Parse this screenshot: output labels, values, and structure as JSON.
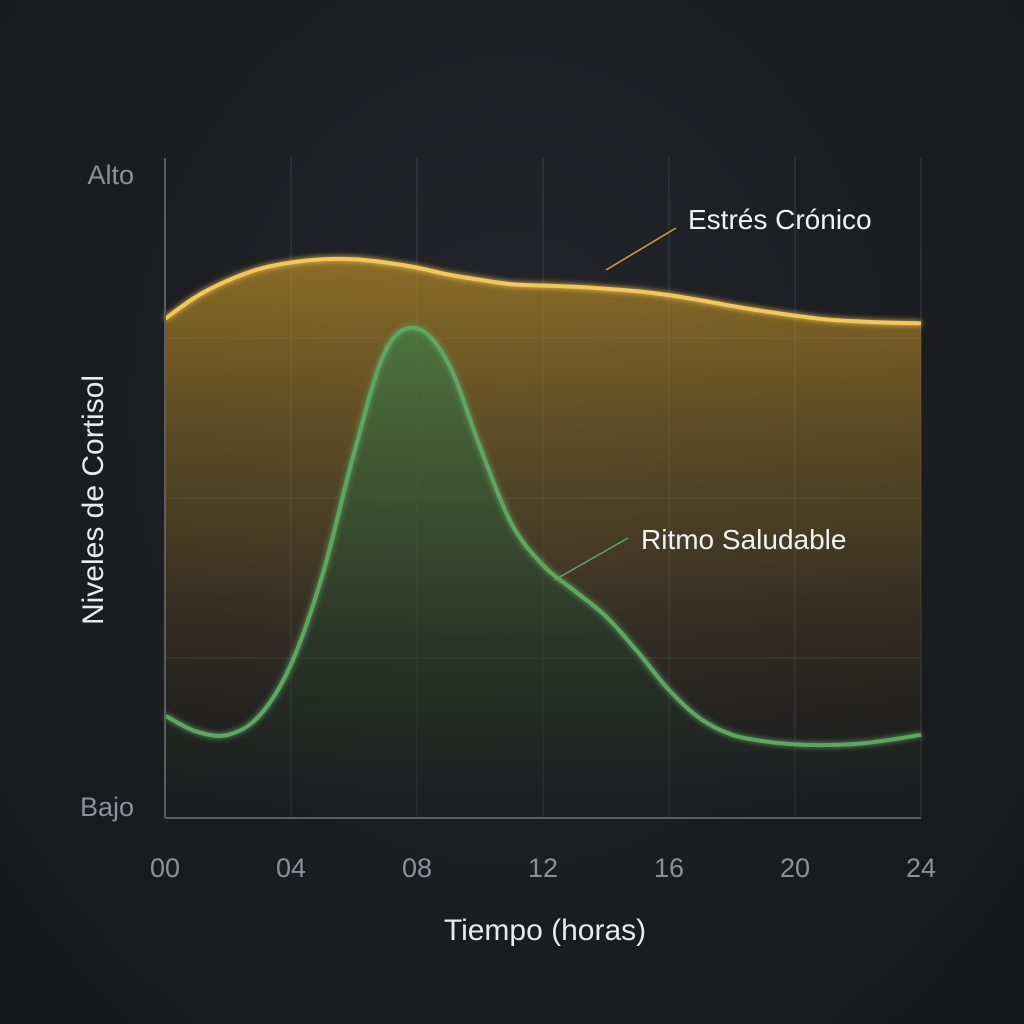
{
  "chart_data": {
    "type": "line",
    "title": "",
    "xlabel": "Tiempo (horas)",
    "ylabel": "Niveles de Cortisol",
    "x_ticks": [
      "00",
      "04",
      "08",
      "12",
      "16",
      "20",
      "24"
    ],
    "y_ticks": [
      "Bajo",
      "Alto"
    ],
    "xlim": [
      0,
      24
    ],
    "ylim": [
      0,
      100
    ],
    "grid": true,
    "series": [
      {
        "name": "Estrés Crónico",
        "color": "#f2c75c",
        "fill": "#b8902c",
        "points": [
          [
            0,
            78
          ],
          [
            1,
            81.5
          ],
          [
            2,
            84
          ],
          [
            3,
            85.8
          ],
          [
            4,
            86.8
          ],
          [
            5,
            87.3
          ],
          [
            6,
            87.3
          ],
          [
            7,
            86.8
          ],
          [
            8,
            86
          ],
          [
            9,
            84.9
          ],
          [
            10,
            84.1
          ],
          [
            11,
            83.4
          ],
          [
            12,
            83.2
          ],
          [
            13,
            83
          ],
          [
            14,
            82.7
          ],
          [
            15,
            82.3
          ],
          [
            16,
            81.7
          ],
          [
            17,
            80.9
          ],
          [
            18,
            80
          ],
          [
            19,
            79.2
          ],
          [
            20,
            78.5
          ],
          [
            21,
            77.9
          ],
          [
            22,
            77.6
          ],
          [
            23,
            77.4
          ],
          [
            24,
            77.3
          ]
        ]
      },
      {
        "name": "Ritmo Saludable",
        "color": "#5ea663",
        "fill": "#3f7a45",
        "points": [
          [
            0,
            16
          ],
          [
            1,
            13.5
          ],
          [
            2,
            13
          ],
          [
            3,
            16
          ],
          [
            4,
            24
          ],
          [
            5,
            38
          ],
          [
            6,
            57
          ],
          [
            7,
            73
          ],
          [
            8,
            76.5
          ],
          [
            9,
            71
          ],
          [
            10,
            58
          ],
          [
            11,
            46
          ],
          [
            12,
            39.5
          ],
          [
            13,
            35.5
          ],
          [
            14,
            31.5
          ],
          [
            15,
            26
          ],
          [
            16,
            20
          ],
          [
            17,
            15.5
          ],
          [
            18,
            13
          ],
          [
            19,
            12
          ],
          [
            20,
            11.5
          ],
          [
            21,
            11.4
          ],
          [
            22,
            11.6
          ],
          [
            23,
            12.2
          ],
          [
            24,
            13
          ]
        ]
      }
    ],
    "annotations": [
      {
        "text": "Estrés Crónico",
        "series": "Estrés Crónico",
        "target_x": 14,
        "target_y": 85
      },
      {
        "text": "Ritmo Saludable",
        "series": "Ritmo Saludable",
        "target_x": 12.3,
        "target_y": 37.5
      }
    ]
  }
}
